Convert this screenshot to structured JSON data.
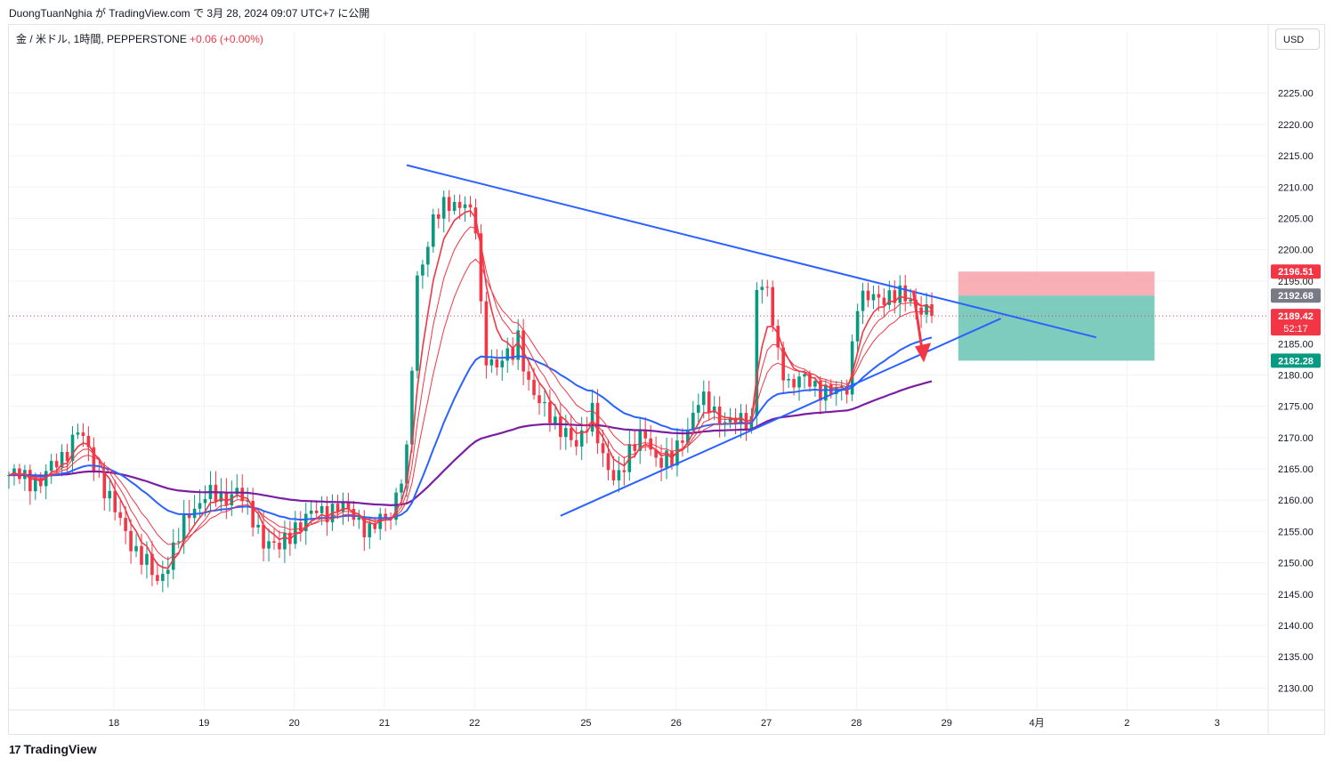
{
  "header": {
    "publish_line": "DuongTuanNghia が TradingView.com で 3月 28, 2024 09:07 UTC+7 に公開"
  },
  "symbol": {
    "name": "金 / 米ドル, 1時間, PEPPERSTONE",
    "change": "+0.06 (+0.00%)",
    "currency_button": "USD"
  },
  "footer": {
    "logo_mark": "17",
    "logo_text": "TradingView"
  },
  "colors": {
    "up": "#089981",
    "down": "#f23645",
    "trendline": "#2962ff",
    "ema_fast": "#f23645",
    "ema_mid": "#2962ff",
    "ema_slow": "#7b1fa2",
    "stop_zone": "#f7a1a8",
    "target_zone": "#6fc7b6"
  },
  "chart_data": {
    "type": "candlestick",
    "symbol": "XAUUSD",
    "timeframe": "1h",
    "y_axis": {
      "ticks": [
        2130,
        2135,
        2140,
        2145,
        2150,
        2155,
        2160,
        2165,
        2170,
        2175,
        2180,
        2185,
        2190,
        2195,
        2200,
        2205,
        2210,
        2215,
        2220,
        2225
      ],
      "ylim": [
        2126.5,
        2230.5
      ],
      "grid": true
    },
    "x_axis": {
      "tick_labels": [
        "18",
        "19",
        "20",
        "21",
        "22",
        "25",
        "26",
        "27",
        "28",
        "29",
        "4月",
        "2",
        "3"
      ]
    },
    "price_labels": [
      {
        "text": "2196.51",
        "value": 2196.51,
        "color": "#f23645"
      },
      {
        "text": "2192.68",
        "value": 2192.68,
        "color": "#787b86"
      },
      {
        "text": "2189.42",
        "value": 2189.42,
        "color": "#f23645",
        "sub": "52:17"
      },
      {
        "text": "2182.28",
        "value": 2182.28,
        "color": "#089981"
      }
    ],
    "last_price": 2189.42,
    "series_path": [
      [
        0,
        2164
      ],
      [
        6,
        2163
      ],
      [
        10,
        2167
      ],
      [
        13,
        2171
      ],
      [
        16,
        2166
      ],
      [
        20,
        2158
      ],
      [
        24,
        2152
      ],
      [
        28,
        2147
      ],
      [
        31,
        2152
      ],
      [
        34,
        2158
      ],
      [
        37,
        2161
      ],
      [
        40,
        2160
      ],
      [
        43,
        2162
      ],
      [
        45,
        2158
      ],
      [
        48,
        2154
      ],
      [
        51,
        2152
      ],
      [
        54,
        2156
      ],
      [
        58,
        2158
      ],
      [
        62,
        2159
      ],
      [
        66,
        2157
      ],
      [
        68,
        2155
      ],
      [
        72,
        2158
      ],
      [
        75,
        2167
      ],
      [
        77,
        2195
      ],
      [
        80,
        2205
      ],
      [
        83,
        2207
      ],
      [
        86,
        2208
      ],
      [
        88,
        2203
      ],
      [
        89,
        2190
      ],
      [
        90,
        2183
      ],
      [
        92,
        2182
      ],
      [
        95,
        2183
      ],
      [
        96,
        2186
      ],
      [
        98,
        2179
      ],
      [
        100,
        2175
      ],
      [
        104,
        2172
      ],
      [
        107,
        2168
      ],
      [
        110,
        2175
      ],
      [
        112,
        2166
      ],
      [
        114,
        2163
      ],
      [
        117,
        2168
      ],
      [
        120,
        2170
      ],
      [
        122,
        2167
      ],
      [
        125,
        2166
      ],
      [
        128,
        2172
      ],
      [
        130,
        2176
      ],
      [
        133,
        2174
      ],
      [
        135,
        2173
      ],
      [
        138,
        2172
      ],
      [
        140,
        2173
      ],
      [
        141,
        2195
      ],
      [
        143,
        2193
      ],
      [
        145,
        2183
      ],
      [
        147,
        2179
      ],
      [
        150,
        2179
      ],
      [
        153,
        2178
      ],
      [
        156,
        2177
      ],
      [
        158,
        2178
      ],
      [
        160,
        2192
      ],
      [
        163,
        2192
      ],
      [
        166,
        2193
      ],
      [
        169,
        2192
      ],
      [
        172,
        2191
      ],
      [
        174,
        2189.42
      ]
    ],
    "x_tick_positions": [
      19.8,
      36.8,
      53.8,
      70.8,
      87.8,
      108.8,
      125.8,
      142.8,
      159.8,
      176.8,
      193.8,
      210.8,
      227.8
    ],
    "overlays": {
      "descending_trendline": [
        [
          75,
          2213.5
        ],
        [
          205,
          2186
        ]
      ],
      "ascending_trendline": [
        [
          104,
          2157.5
        ],
        [
          187,
          2189
        ]
      ],
      "short_position": {
        "x_start": 179,
        "x_end": 216,
        "entry": 2192.68,
        "stop": 2196.51,
        "target": 2182.28
      },
      "arrow": {
        "from": [
          170.5,
          2193.5
        ],
        "to": [
          172.5,
          2182
        ]
      }
    }
  }
}
